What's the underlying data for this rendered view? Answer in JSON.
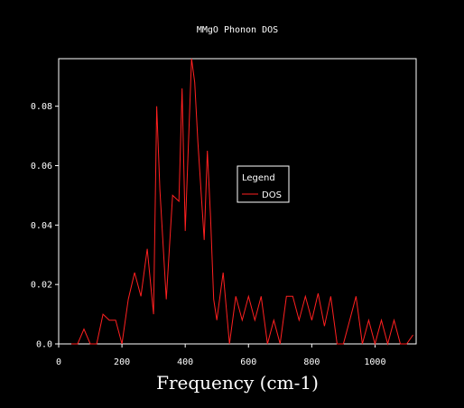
{
  "chart_data": {
    "type": "line",
    "title": "MMgO Phonon DOS",
    "xlabel": "Frequency (cm-1)",
    "ylabel": "",
    "xlim": [
      0,
      1130
    ],
    "ylim": [
      0,
      0.096
    ],
    "xticks": [
      0,
      200,
      400,
      600,
      800,
      1000
    ],
    "xtick_labels": [
      "0",
      "200",
      "400",
      "600",
      "800",
      "1000"
    ],
    "yticks": [
      0,
      0.02,
      0.04,
      0.06,
      0.08
    ],
    "ytick_labels": [
      "0.0",
      "0.02",
      "0.04",
      "0.06",
      "0.08"
    ],
    "grid": false,
    "legend": {
      "title": "Legend",
      "placement": "center-right"
    },
    "series": [
      {
        "name": "DOS",
        "color": "#ff2020",
        "x": [
          40,
          60,
          80,
          100,
          120,
          140,
          160,
          180,
          200,
          220,
          240,
          260,
          280,
          300,
          310,
          320,
          340,
          360,
          380,
          390,
          400,
          420,
          430,
          440,
          460,
          470,
          480,
          490,
          500,
          520,
          540,
          560,
          580,
          600,
          620,
          640,
          660,
          680,
          700,
          720,
          740,
          760,
          780,
          800,
          820,
          840,
          860,
          880,
          900,
          920,
          940,
          960,
          980,
          1000,
          1020,
          1040,
          1060,
          1080,
          1100,
          1120
        ],
        "y": [
          0,
          0,
          0.005,
          0,
          0,
          0.01,
          0.008,
          0.008,
          0,
          0.015,
          0.024,
          0.016,
          0.032,
          0.01,
          0.08,
          0.052,
          0.015,
          0.05,
          0.048,
          0.086,
          0.038,
          0.096,
          0.088,
          0.068,
          0.035,
          0.065,
          0.043,
          0.015,
          0.008,
          0.024,
          0,
          0.016,
          0.008,
          0.016,
          0.008,
          0.016,
          0,
          0.008,
          0,
          0.016,
          0.016,
          0.008,
          0.016,
          0.008,
          0.017,
          0.006,
          0.016,
          0,
          0,
          0.008,
          0.016,
          0,
          0.008,
          0,
          0.008,
          0,
          0.008,
          0,
          0,
          0.003
        ]
      }
    ]
  }
}
